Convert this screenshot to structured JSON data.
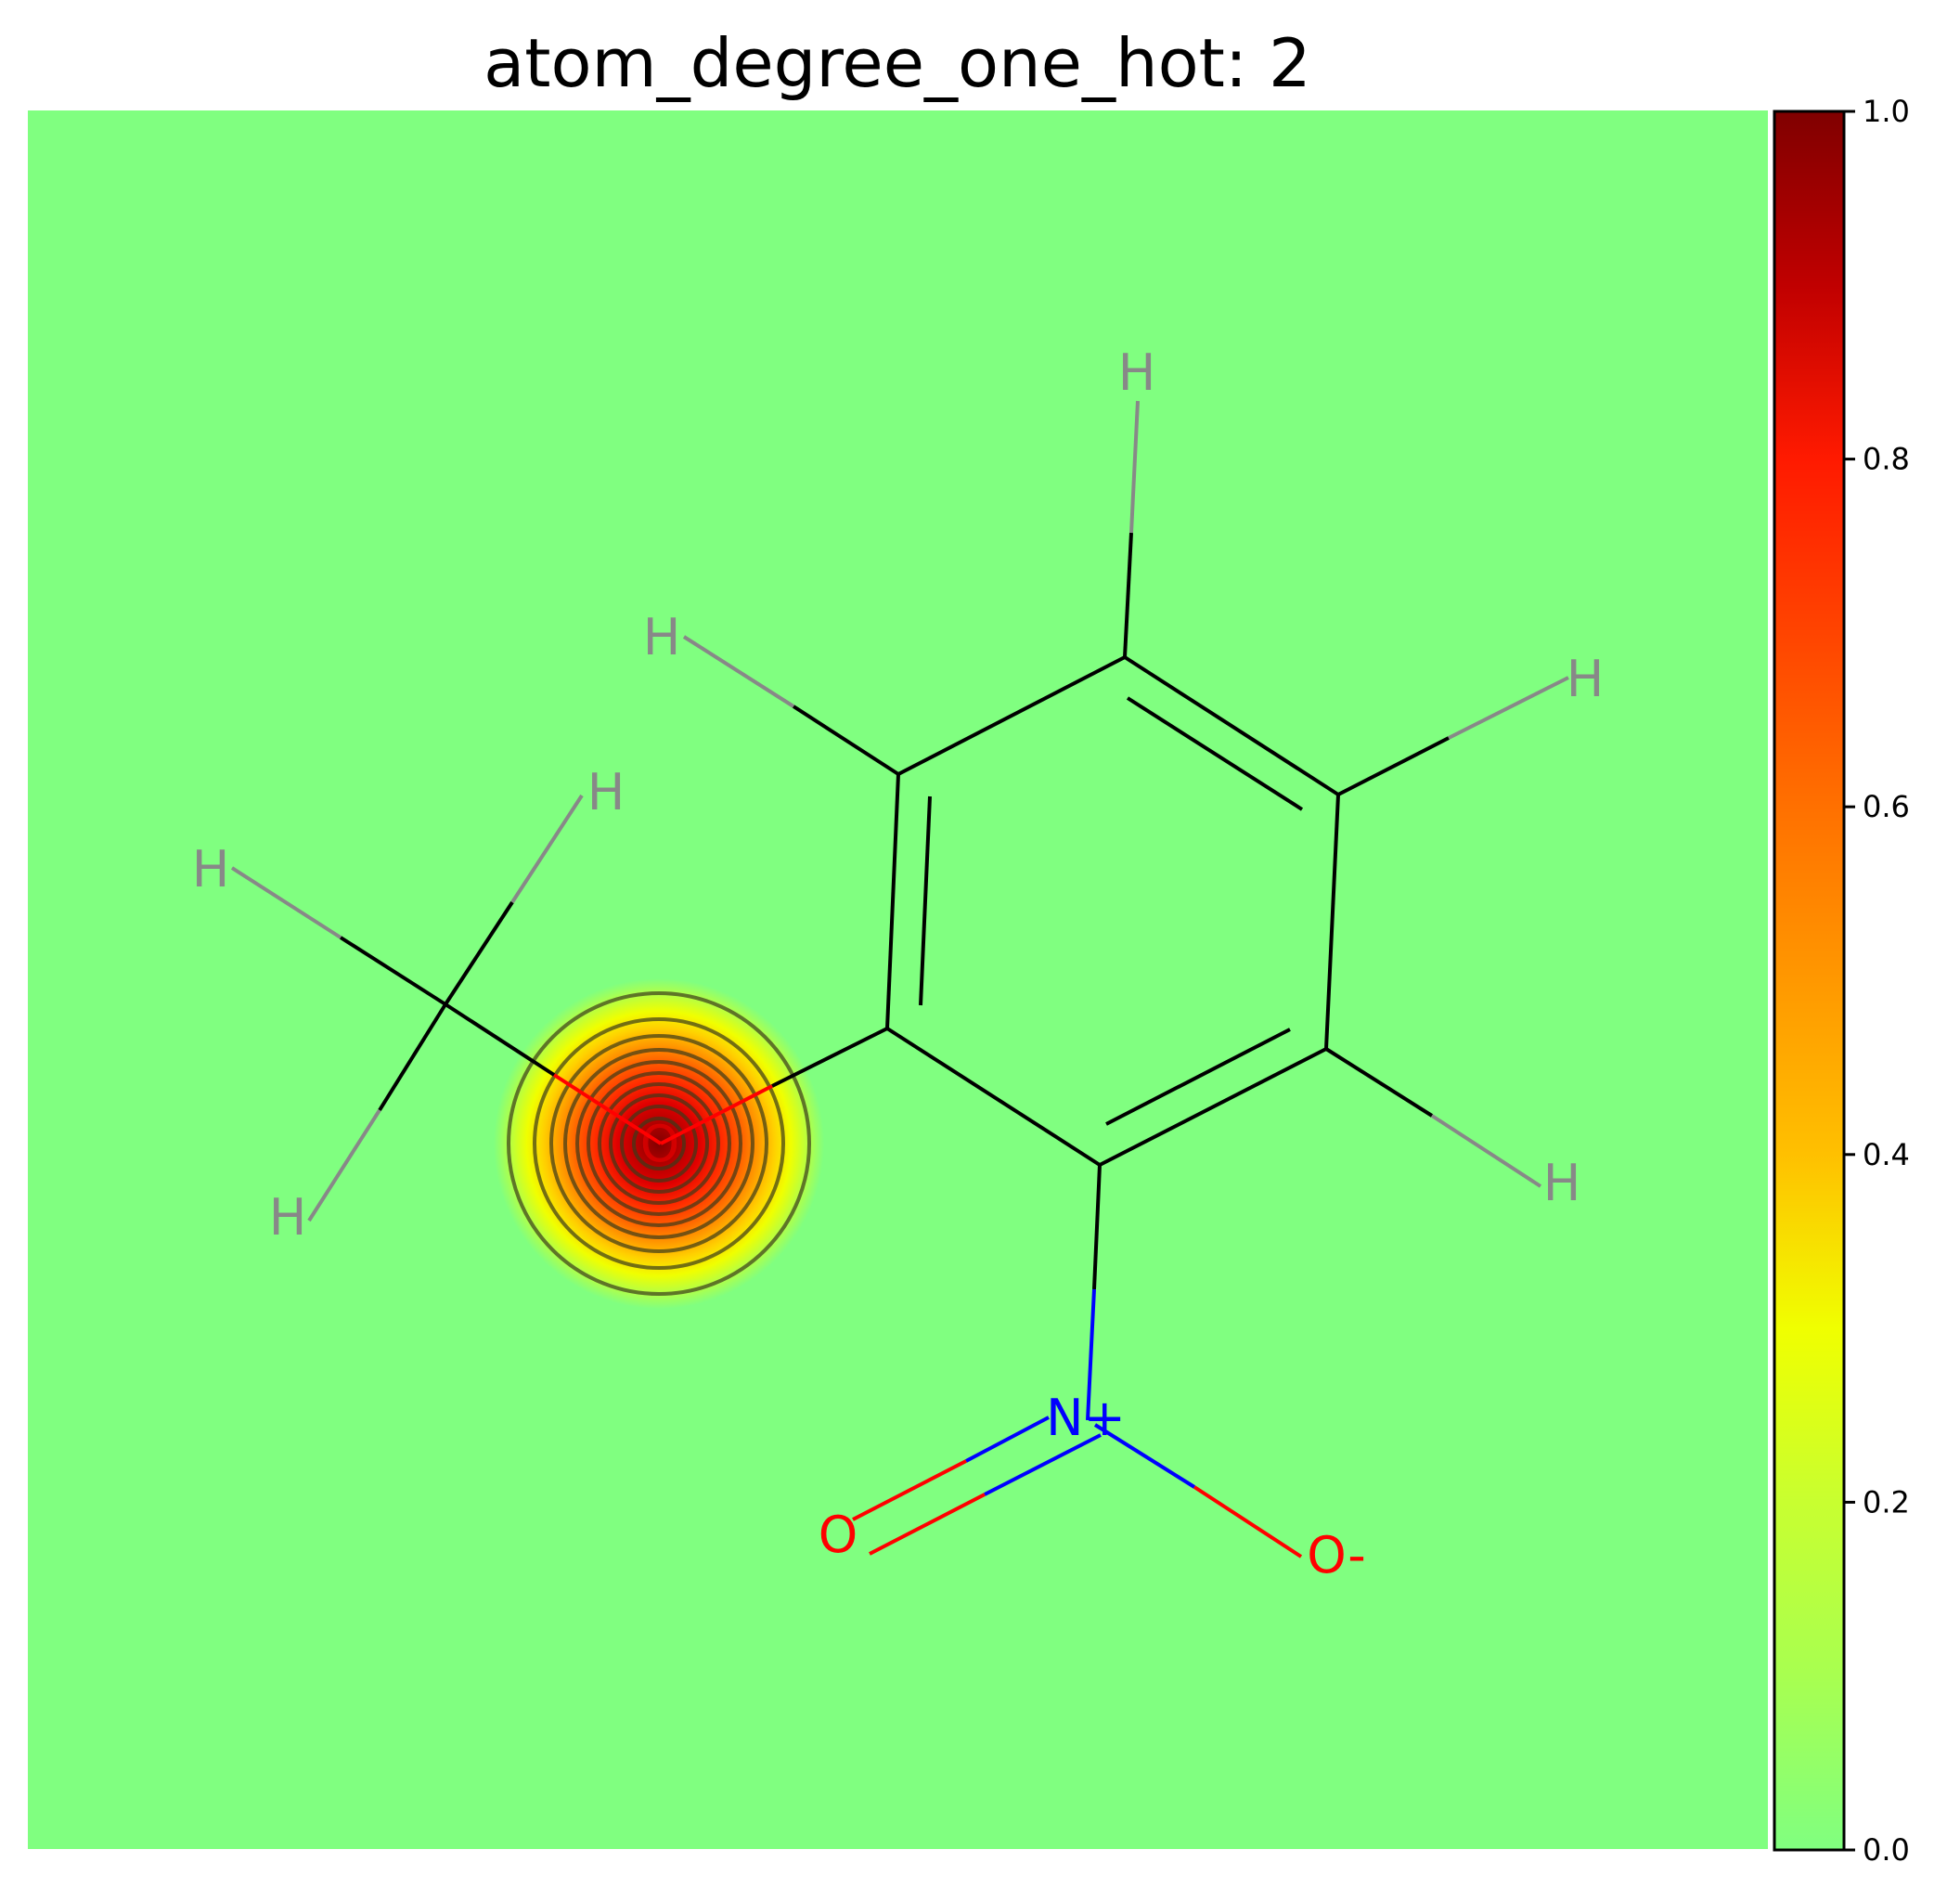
{
  "chart_data": {
    "type": "heatmap",
    "title": "atom_degree_one_hot: 2",
    "colormap": "jet-like (green at 0 to dark red at 1)",
    "colorbar": {
      "ticks": [
        "0.0",
        "0.2",
        "0.4",
        "0.6",
        "0.8",
        "1.0"
      ],
      "range": [
        0,
        1
      ],
      "placement": "right"
    },
    "background_value": 0.0,
    "hotspots": [
      {
        "atom": "O",
        "value": 1.0,
        "contour_levels": 10
      }
    ],
    "molecule": {
      "atoms": [
        {
          "id": "h_top",
          "label": "H",
          "color": "#888888"
        },
        {
          "id": "h_upper_left",
          "label": "H",
          "color": "#888888"
        },
        {
          "id": "h_right_upper",
          "label": "H",
          "color": "#888888"
        },
        {
          "id": "h_methyl_top",
          "label": "H",
          "color": "#888888"
        },
        {
          "id": "h_methyl_left",
          "label": "H",
          "color": "#888888"
        },
        {
          "id": "h_methyl_bottom",
          "label": "H",
          "color": "#888888"
        },
        {
          "id": "h_right_lower",
          "label": "H",
          "color": "#888888"
        },
        {
          "id": "o_ether",
          "label": "O",
          "color": "#ff0000"
        },
        {
          "id": "n_nitro",
          "label": "N+",
          "color": "#0000ff"
        },
        {
          "id": "o_nitro_double",
          "label": "O",
          "color": "#ff0000"
        },
        {
          "id": "o_nitro_minus",
          "label": "O-",
          "color": "#ff0000"
        }
      ]
    }
  }
}
